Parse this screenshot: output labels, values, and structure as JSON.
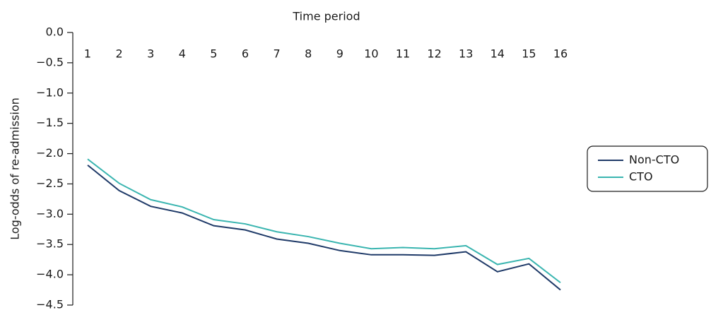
{
  "chart_data": {
    "type": "line",
    "x_label": "Time period",
    "y_label": "Log-odds of re-admission",
    "categories": [
      "1",
      "2",
      "3",
      "4",
      "5",
      "6",
      "7",
      "8",
      "9",
      "10",
      "11",
      "12",
      "13",
      "14",
      "15",
      "16"
    ],
    "series": [
      {
        "name": "Non-CTO",
        "color": "#1f3a68",
        "values": [
          -2.19,
          -2.61,
          -2.87,
          -2.98,
          -3.19,
          -3.26,
          -3.41,
          -3.48,
          -3.6,
          -3.67,
          -3.67,
          -3.68,
          -3.62,
          -3.95,
          -3.82,
          -4.25
        ]
      },
      {
        "name": "CTO",
        "color": "#3ab5b0",
        "values": [
          -2.09,
          -2.49,
          -2.76,
          -2.88,
          -3.09,
          -3.16,
          -3.29,
          -3.37,
          -3.48,
          -3.57,
          -3.55,
          -3.57,
          -3.52,
          -3.83,
          -3.73,
          -4.13
        ]
      }
    ],
    "ylim": [
      0,
      -4.5
    ],
    "yticks": [
      {
        "value": 0,
        "label": "0.0"
      },
      {
        "value": -0.5,
        "label": "−0.5"
      },
      {
        "value": -1,
        "label": "−1.0"
      },
      {
        "value": -1.5,
        "label": "−1.5"
      },
      {
        "value": -2,
        "label": "−2.0"
      },
      {
        "value": -2.5,
        "label": "−2.5"
      },
      {
        "value": -3,
        "label": "−3.0"
      },
      {
        "value": -3.5,
        "label": "−3.5"
      },
      {
        "value": -4,
        "label": "−4.0"
      },
      {
        "value": -4.5,
        "label": "−4.5"
      }
    ],
    "legend": "right"
  }
}
